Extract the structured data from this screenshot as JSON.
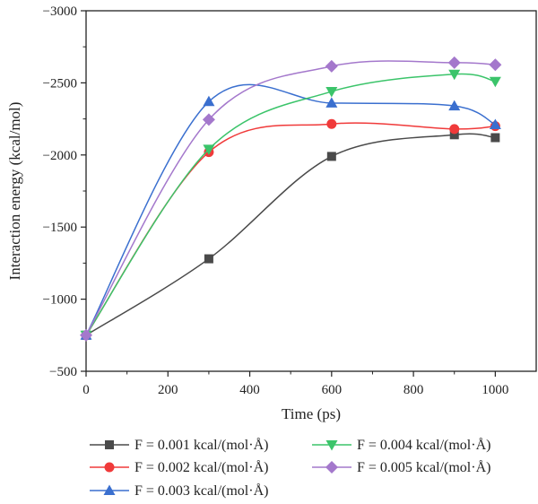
{
  "chart_data": {
    "type": "line",
    "xlabel": "Time (ps)",
    "ylabel": "Interaction energy (kcal/mol)",
    "xlim": [
      0,
      1100
    ],
    "ylim": [
      -500,
      -3000
    ],
    "y_axis_inverted": true,
    "x_ticks": [
      0,
      200,
      400,
      600,
      800,
      1000
    ],
    "x_tick_labels": [
      "0",
      "200",
      "400",
      "600",
      "800",
      "1000"
    ],
    "y_ticks": [
      -500,
      -1000,
      -1500,
      -2000,
      -2500,
      -3000
    ],
    "y_tick_labels": [
      "−500",
      "−1000",
      "−1500",
      "−2000",
      "−2500",
      "−3000"
    ],
    "grid": false,
    "legend_position": "bottom",
    "x": [
      0,
      300,
      600,
      900,
      1000
    ],
    "series": [
      {
        "name": "F = 0.001 kcal/(mol·Å)",
        "color": "#4a4a4a",
        "marker": "square",
        "values": [
          -750,
          -1280,
          -1990,
          -2140,
          -2120
        ]
      },
      {
        "name": "F = 0.002 kcal/(mol·Å)",
        "color": "#f03a3a",
        "marker": "circle",
        "values": [
          -750,
          -2020,
          -2215,
          -2180,
          -2200
        ]
      },
      {
        "name": "F = 0.003 kcal/(mol·Å)",
        "color": "#3a6fcf",
        "marker": "triangle-up",
        "values": [
          -750,
          -2370,
          -2360,
          -2340,
          -2210
        ]
      },
      {
        "name": "F = 0.004 kcal/(mol·Å)",
        "color": "#3bc46a",
        "marker": "triangle-down",
        "values": [
          -750,
          -2040,
          -2440,
          -2560,
          -2510
        ]
      },
      {
        "name": "F = 0.005 kcal/(mol·Å)",
        "color": "#a478cc",
        "marker": "diamond",
        "values": [
          -750,
          -2245,
          -2615,
          -2640,
          -2625
        ]
      }
    ]
  }
}
